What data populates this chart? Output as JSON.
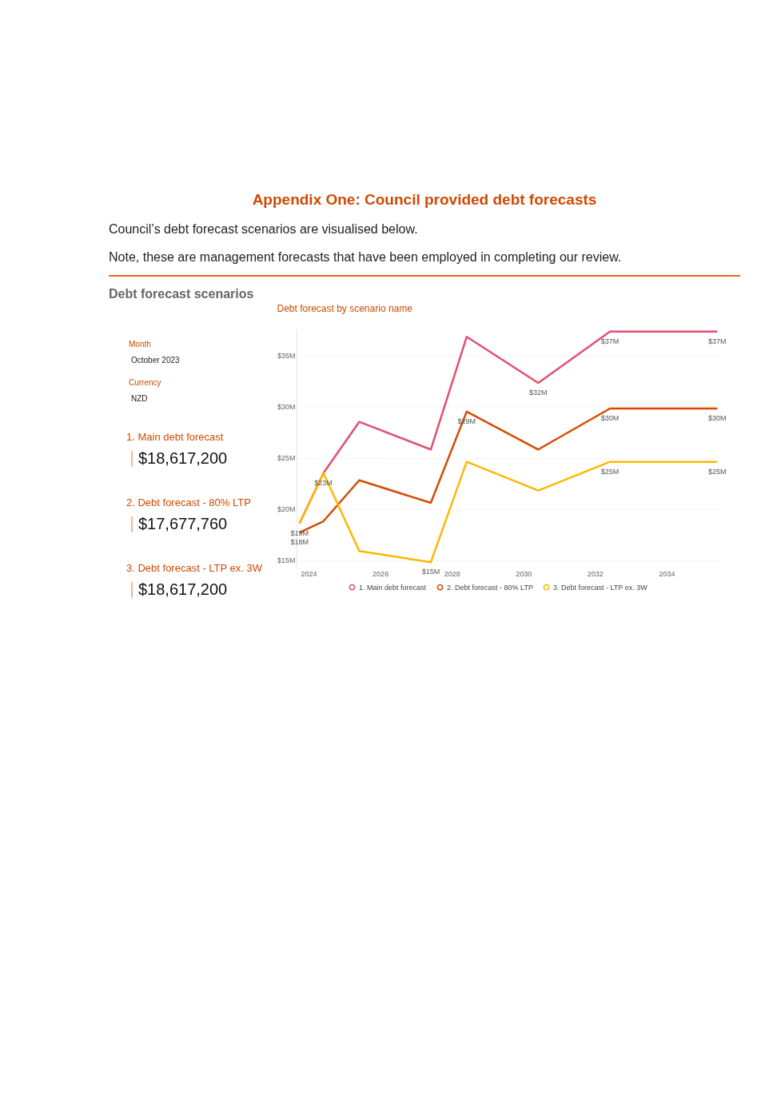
{
  "chart_data": {
    "type": "line",
    "title": "Debt forecast by scenario name",
    "annotations": [
      "Appendix One: Council provided debt forecasts",
      "Council’s debt forecast scenarios are visualised below.",
      "Note, these are management forecasts that have been employed in completing our review.",
      "Debt forecast scenarios",
      "Month",
      "October 2023",
      "Currency",
      "NZD",
      "1. Main debt forecast",
      "$18,617,200",
      "2. Debt forecast - 80% LTP",
      "$17,677,760",
      "3. Debt forecast - LTP ex. 3W",
      "$18,617,200"
    ],
    "x": [
      "2023-10",
      "2024-06",
      "2025-06",
      "2027-06",
      "2028-06",
      "2030-06",
      "2032-06",
      "2035-06"
    ],
    "series": [
      {
        "name": "1. Main debt forecast",
        "color": "#e0506e",
        "values": [
          18.6,
          23.5,
          28.5,
          25.8,
          36.8,
          32.3,
          37.3,
          37.3
        ],
        "value_labels": [
          "$19M",
          null,
          null,
          null,
          null,
          "$32M",
          "$37M",
          "$37M"
        ]
      },
      {
        "name": "2. Debt forecast - 80% LTP",
        "color": "#d64a00",
        "values": [
          17.7,
          18.8,
          22.8,
          20.6,
          29.5,
          25.8,
          29.8,
          29.8
        ],
        "value_labels": [
          "$18M",
          null,
          null,
          null,
          "$29M",
          null,
          "$30M",
          "$30M"
        ]
      },
      {
        "name": "3. Debt forecast - LTP ex. 3W",
        "color": "#ffb800",
        "values": [
          18.6,
          23.5,
          15.9,
          14.8,
          24.6,
          21.8,
          24.6,
          24.6
        ],
        "value_labels": [
          null,
          "$23M",
          null,
          "$15M",
          null,
          null,
          "$25M",
          "$25M"
        ]
      }
    ],
    "xlim": [
      "2023-09",
      "2035-07"
    ],
    "xticks": [
      "2024",
      "2026",
      "2028",
      "2030",
      "2032",
      "2034"
    ],
    "ylim": [
      14.2,
      37.6
    ],
    "yticks": [
      {
        "value": 15,
        "label": "$15M"
      },
      {
        "value": 20,
        "label": "$20M"
      },
      {
        "value": 25,
        "label": "$25M"
      },
      {
        "value": 30,
        "label": "$30M"
      },
      {
        "value": 35,
        "label": "$35M"
      }
    ],
    "grid": "y",
    "legend": "bottom",
    "marker": "none",
    "line_style": "solid"
  }
}
